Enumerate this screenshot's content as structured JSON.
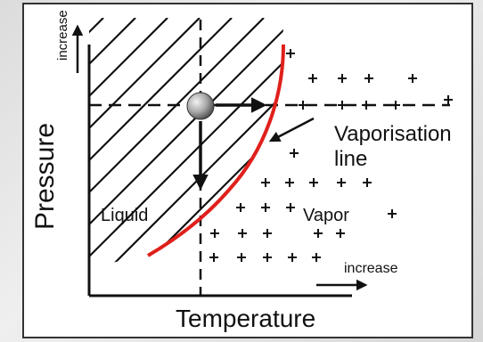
{
  "diagram": {
    "x_axis_label": "Temperature",
    "y_axis_label": "Pressure",
    "x_increase_label": "increase",
    "y_increase_label": "increase",
    "region_liquid_label": "Liquid",
    "region_vapor_label": "Vapor",
    "curve_label_line1": "Vaporisation",
    "curve_label_line2": "line",
    "curve_color": "#e0201b",
    "ball_color": "#9a9a9a"
  }
}
